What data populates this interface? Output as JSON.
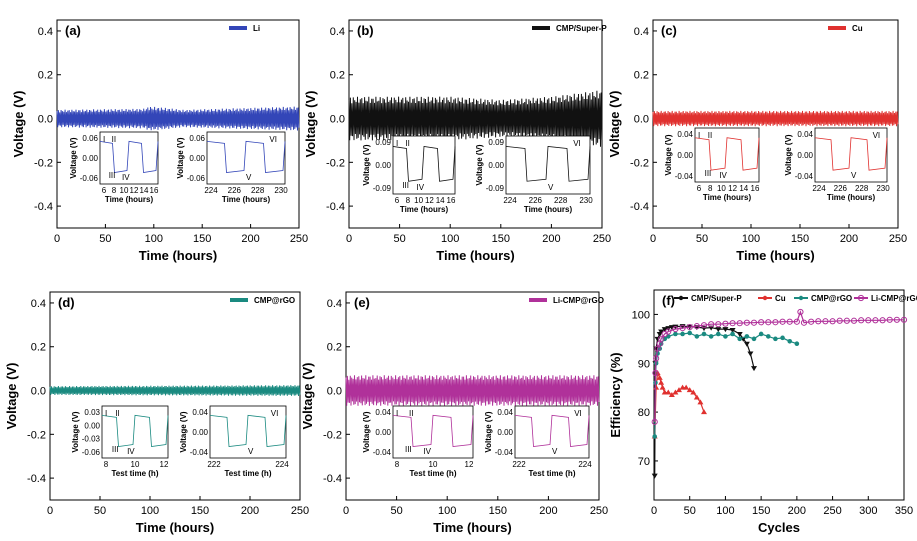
{
  "chart_data": [
    {
      "id": "a",
      "type": "line",
      "panel_label": "(a)",
      "legend": "Li",
      "color": "#3346b8",
      "xlabel": "Time (hours)",
      "ylabel": "Voltage (V)",
      "xlim": [
        0,
        250
      ],
      "ylim": [
        -0.5,
        0.45
      ],
      "xticks": [
        "0",
        "50",
        "100",
        "150",
        "200",
        "250"
      ],
      "yticks": [
        "-0.4",
        "-0.2",
        "0.0",
        "0.2",
        "0.4"
      ],
      "series": [
        {
          "name": "Li",
          "amplitude": [
            [
              0,
              0.04
            ],
            [
              90,
              0.045
            ],
            [
              95,
              0.055
            ],
            [
              110,
              0.05
            ],
            [
              130,
              0.04
            ],
            [
              250,
              0.055
            ]
          ]
        }
      ],
      "insets": [
        {
          "xlabel": "Time (hours)",
          "ylabel": "Voltage (V)",
          "xticks": [
            "6",
            "8",
            "10",
            "12",
            "14",
            "16"
          ],
          "yticks": [
            "0.06",
            "0.00",
            "-0.06"
          ],
          "roman": [
            "I",
            "II",
            "III",
            "IV"
          ]
        },
        {
          "xlabel": "Time (hours)",
          "ylabel": "Voltage (V)",
          "xticks": [
            "224",
            "226",
            "228",
            "230"
          ],
          "yticks": [
            "0.06",
            "0.00",
            "-0.06"
          ],
          "roman": [
            "V",
            "VI"
          ]
        }
      ]
    },
    {
      "id": "b",
      "type": "line",
      "panel_label": "(b)",
      "legend": "CMP/Super-P",
      "color": "#111111",
      "xlabel": "Time (hours)",
      "ylabel": "Voltage (V)",
      "xlim": [
        0,
        250
      ],
      "ylim": [
        -0.5,
        0.45
      ],
      "xticks": [
        "0",
        "50",
        "100",
        "150",
        "200",
        "250"
      ],
      "yticks": [
        "-0.4",
        "-0.2",
        "0.0",
        "0.2",
        "0.4"
      ],
      "series": [
        {
          "name": "CMP/Super-P",
          "amplitude": [
            [
              0,
              0.1
            ],
            [
              100,
              0.1
            ],
            [
              150,
              0.085
            ],
            [
              200,
              0.1
            ],
            [
              250,
              0.13
            ]
          ]
        }
      ],
      "insets": [
        {
          "xlabel": "Time (hours)",
          "ylabel": "Voltage (V)",
          "xticks": [
            "6",
            "8",
            "10",
            "12",
            "14",
            "16"
          ],
          "yticks": [
            "0.09",
            "0.00",
            "-0.09"
          ],
          "roman": [
            "I",
            "II",
            "III",
            "IV"
          ]
        },
        {
          "xlabel": "Time (hours)",
          "ylabel": "Voltage (V)",
          "xticks": [
            "224",
            "226",
            "228",
            "230"
          ],
          "yticks": [
            "0.09",
            "0.00",
            "-0.09"
          ],
          "roman": [
            "V",
            "VI"
          ]
        }
      ]
    },
    {
      "id": "c",
      "type": "line",
      "panel_label": "(c)",
      "legend": "Cu",
      "color": "#e0312f",
      "xlabel": "Time (hours)",
      "ylabel": "Voltage (V)",
      "xlim": [
        0,
        250
      ],
      "ylim": [
        -0.5,
        0.45
      ],
      "xticks": [
        "0",
        "50",
        "100",
        "150",
        "200",
        "250"
      ],
      "yticks": [
        "-0.4",
        "-0.2",
        "0.0",
        "0.2",
        "0.4"
      ],
      "series": [
        {
          "name": "Cu",
          "amplitude": [
            [
              0,
              0.035
            ],
            [
              250,
              0.035
            ]
          ]
        }
      ],
      "insets": [
        {
          "xlabel": "Time (hours)",
          "ylabel": "Voltage (V)",
          "xticks": [
            "6",
            "8",
            "10",
            "12",
            "14",
            "16"
          ],
          "yticks": [
            "0.04",
            "0.00",
            "-0.04"
          ],
          "roman": [
            "I",
            "II",
            "III",
            "IV"
          ]
        },
        {
          "xlabel": "Time (hours)",
          "ylabel": "Voltage (V)",
          "xticks": [
            "224",
            "226",
            "228",
            "230"
          ],
          "yticks": [
            "0.04",
            "0.00",
            "-0.04"
          ],
          "roman": [
            "V",
            "VI"
          ]
        }
      ]
    },
    {
      "id": "d",
      "type": "line",
      "panel_label": "(d)",
      "legend": "CMP@rGO",
      "color": "#1a8a80",
      "xlabel": "Time (hours)",
      "ylabel": "Voltage (V)",
      "xlim": [
        0,
        250
      ],
      "ylim": [
        -0.5,
        0.45
      ],
      "xticks": [
        "0",
        "50",
        "100",
        "150",
        "200",
        "250"
      ],
      "yticks": [
        "-0.4",
        "-0.2",
        "0.0",
        "0.2",
        "0.4"
      ],
      "series": [
        {
          "name": "CMP@rGO",
          "amplitude": [
            [
              0,
              0.02
            ],
            [
              250,
              0.025
            ]
          ]
        }
      ],
      "insets": [
        {
          "xlabel": "Test time (h)",
          "ylabel": "Voltage (V)",
          "xticks": [
            "8",
            "10",
            "12"
          ],
          "yticks": [
            "0.03",
            "0.00",
            "-0.03",
            "-0.06"
          ],
          "roman": [
            "I",
            "II",
            "III",
            "IV"
          ]
        },
        {
          "xlabel": "Test time (h)",
          "ylabel": "Voltage (V)",
          "xticks": [
            "222",
            "224"
          ],
          "yticks": [
            "0.04",
            "0.00",
            "-0.04"
          ],
          "roman": [
            "V",
            "VI"
          ]
        }
      ]
    },
    {
      "id": "e",
      "type": "line",
      "panel_label": "(e)",
      "legend": "Li-CMP@rGO",
      "color": "#b0319a",
      "xlabel": "Time (hours)",
      "ylabel": "Voltage (V)",
      "xlim": [
        0,
        250
      ],
      "ylim": [
        -0.5,
        0.45
      ],
      "xticks": [
        "0",
        "50",
        "100",
        "150",
        "200",
        "250"
      ],
      "yticks": [
        "-0.4",
        "-0.2",
        "0.0",
        "0.2",
        "0.4"
      ],
      "series": [
        {
          "name": "Li-CMP@rGO",
          "amplitude": [
            [
              0,
              0.07
            ],
            [
              250,
              0.07
            ]
          ]
        }
      ],
      "insets": [
        {
          "xlabel": "Test time (h)",
          "ylabel": "Voltage (V)",
          "xticks": [
            "8",
            "10",
            "12"
          ],
          "yticks": [
            "0.04",
            "0.00",
            "-0.04"
          ],
          "roman": [
            "I",
            "II",
            "III",
            "IV"
          ]
        },
        {
          "xlabel": "Test time (h)",
          "ylabel": "Voltage (V)",
          "xticks": [
            "222",
            "224"
          ],
          "yticks": [
            "0.04",
            "0.00",
            "-0.04"
          ],
          "roman": [
            "V",
            "VI"
          ]
        }
      ]
    },
    {
      "id": "f",
      "type": "line",
      "panel_label": "(f)",
      "xlabel": "Cycles",
      "ylabel": "Efficiency (%)",
      "xlim": [
        0,
        350
      ],
      "ylim": [
        62,
        105
      ],
      "xticks": [
        "0",
        "50",
        "100",
        "150",
        "200",
        "250",
        "300",
        "350"
      ],
      "yticks": [
        "70",
        "80",
        "90",
        "100"
      ],
      "series": [
        {
          "name": "CMP/Super-P",
          "color": "#111111",
          "marker": "triangle-down",
          "x": [
            1,
            2,
            3,
            5,
            8,
            10,
            15,
            20,
            25,
            30,
            40,
            50,
            60,
            70,
            80,
            90,
            100,
            110,
            120,
            125,
            130,
            135,
            140
          ],
          "y": [
            67,
            90,
            93,
            95,
            96,
            96.5,
            97,
            97.2,
            97.4,
            97.5,
            97.6,
            97.5,
            97.4,
            97.2,
            97.3,
            97,
            97,
            96.8,
            96,
            95,
            94,
            92,
            89
          ]
        },
        {
          "name": "Cu",
          "color": "#e0312f",
          "marker": "triangle-up",
          "x": [
            1,
            3,
            5,
            8,
            10,
            12,
            15,
            20,
            25,
            30,
            35,
            40,
            45,
            50,
            55,
            60,
            65,
            70
          ],
          "y": [
            75,
            85,
            88,
            87,
            86,
            85,
            84,
            84,
            83.5,
            84,
            84.5,
            85,
            85,
            84.5,
            84,
            83,
            82,
            80
          ]
        },
        {
          "name": "CMP@rGO",
          "color": "#1a8a80",
          "marker": "circle",
          "x": [
            1,
            2,
            3,
            5,
            8,
            10,
            15,
            20,
            30,
            40,
            50,
            60,
            70,
            80,
            90,
            100,
            110,
            120,
            130,
            140,
            150,
            160,
            170,
            180,
            190,
            200
          ],
          "y": [
            75,
            86,
            90,
            92,
            93,
            94,
            95,
            95.5,
            96,
            96,
            96.2,
            95.5,
            96,
            95.5,
            96,
            95.5,
            96,
            95,
            95.5,
            95,
            96,
            95.5,
            95,
            95.2,
            94.5,
            94
          ]
        },
        {
          "name": "Li-CMP@rGO",
          "color": "#b0319a",
          "marker": "circle-open",
          "x": [
            1,
            2,
            3,
            5,
            8,
            10,
            15,
            20,
            30,
            40,
            50,
            60,
            70,
            80,
            90,
            100,
            110,
            120,
            130,
            140,
            150,
            160,
            170,
            180,
            190,
            200,
            205,
            210,
            220,
            230,
            240,
            250,
            260,
            270,
            280,
            290,
            300,
            310,
            320,
            330,
            340,
            350
          ],
          "y": [
            78,
            88,
            91,
            93,
            94,
            95,
            96,
            96.5,
            97,
            97.2,
            97.4,
            97.6,
            97.8,
            98,
            98,
            98.1,
            98.2,
            98.2,
            98.3,
            98.3,
            98.4,
            98.4,
            98.4,
            98.5,
            98.5,
            98.5,
            100.5,
            98.3,
            98.5,
            98.6,
            98.6,
            98.6,
            98.7,
            98.7,
            98.7,
            98.8,
            98.8,
            98.8,
            98.8,
            98.9,
            98.9,
            98.9
          ]
        }
      ]
    }
  ]
}
